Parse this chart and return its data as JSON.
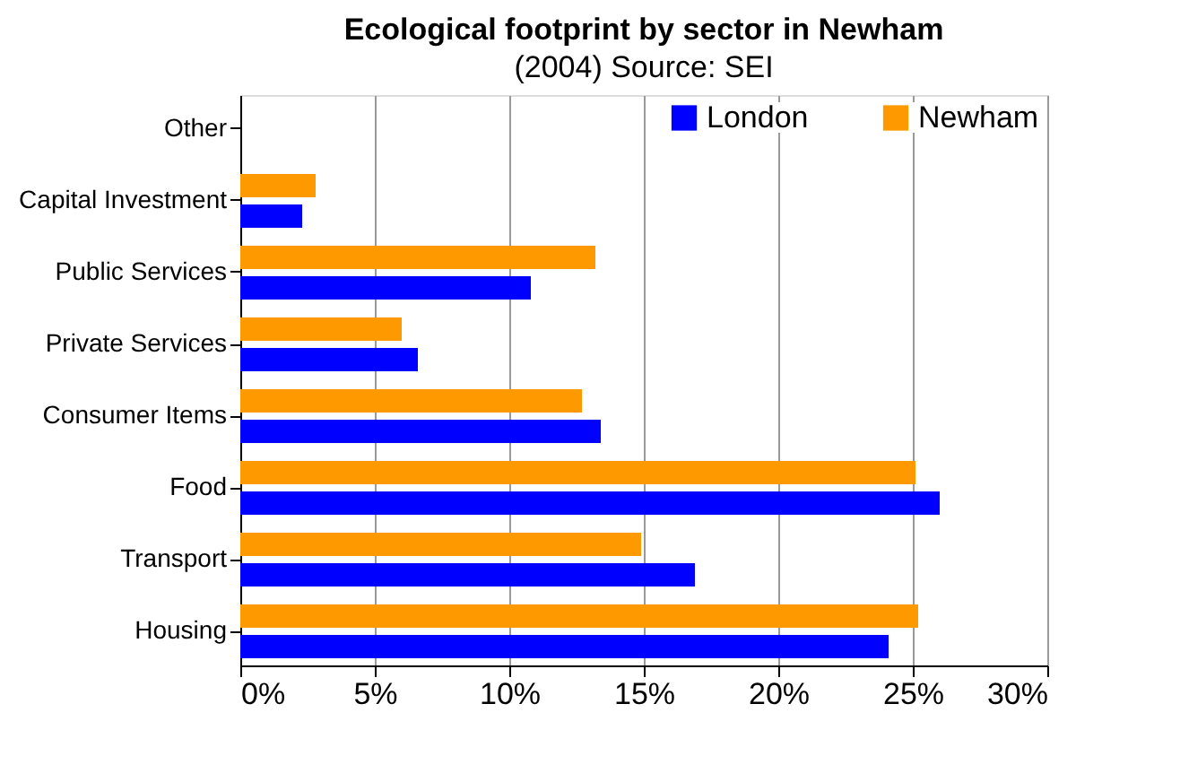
{
  "chart_data": {
    "type": "bar",
    "orientation": "horizontal",
    "title": "Ecological footprint by sector in Newham",
    "subtitle": "(2004) Source: SEI",
    "categories": [
      "Other",
      "Capital Investment",
      "Public Services",
      "Private Services",
      "Consumer Items",
      "Food",
      "Transport",
      "Housing"
    ],
    "series": [
      {
        "name": "London",
        "color": "#0000ff",
        "values": [
          null,
          2.3,
          10.8,
          6.6,
          13.4,
          26.0,
          16.9,
          24.1
        ]
      },
      {
        "name": "Newham",
        "color": "#ff9900",
        "values": [
          null,
          2.8,
          13.2,
          6.0,
          12.7,
          25.1,
          14.9,
          25.2
        ]
      }
    ],
    "xlim": [
      0,
      30
    ],
    "xticks": [
      {
        "value": 0,
        "label": "0%"
      },
      {
        "value": 5,
        "label": "5%"
      },
      {
        "value": 10,
        "label": "10%"
      },
      {
        "value": 15,
        "label": "15%"
      },
      {
        "value": 20,
        "label": "20%"
      },
      {
        "value": 25,
        "label": "25%"
      },
      {
        "value": 30,
        "label": "30%"
      }
    ],
    "grid": "x",
    "legend": "top right"
  }
}
